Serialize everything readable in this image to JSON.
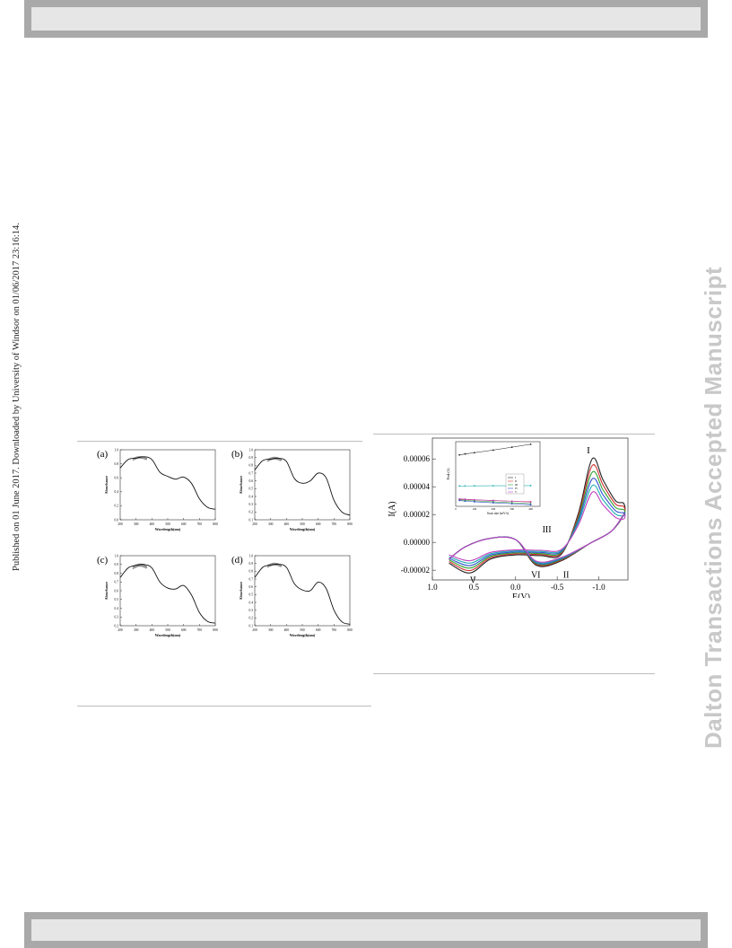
{
  "side_note": "Published on 01 June 2017. Downloaded by University of Windsor on 01/06/2017 23:16:14.",
  "watermark": "Dalton Transactions Accepted Manuscript",
  "colors": {
    "header_bar": "#a9a9a9",
    "watermark": "#c8c8c8"
  },
  "figure_left": {
    "panels": [
      {
        "label": "(a)",
        "xlabel": "Wavelength(nm)",
        "ylabel": "Absorbance"
      },
      {
        "label": "(b)",
        "xlabel": "Wavelength(nm)",
        "ylabel": "Absorbance"
      },
      {
        "label": "(c)",
        "xlabel": "Wavelength(nm)",
        "ylabel": "Absorbance"
      },
      {
        "label": "(d)",
        "xlabel": "Wavelength(nm)",
        "ylabel": "Absorbance"
      }
    ]
  },
  "figure_right": {
    "ylabel": "I(A)",
    "xlabel": "E(V)",
    "peak_labels": [
      "I",
      "II",
      "III",
      "V",
      "VI"
    ],
    "inset": {
      "xlabel": "Scan rate (mV/s)",
      "ylabel": "Peak (A)",
      "legend": [
        "I",
        "II",
        "III",
        "IV",
        "V"
      ]
    }
  },
  "chart_data": [
    {
      "type": "line",
      "title": "(a)",
      "xlabel": "Wavelength(nm)",
      "ylabel": "Absorbance",
      "x": [
        200,
        250,
        300,
        350,
        400,
        450,
        500,
        550,
        600,
        650,
        700,
        750,
        800
      ],
      "series": [
        {
          "values": [
            0.74,
            0.86,
            0.88,
            0.9,
            0.86,
            0.68,
            0.62,
            0.58,
            0.61,
            0.52,
            0.3,
            0.18,
            0.15
          ]
        }
      ],
      "xlim": [
        200,
        800
      ],
      "ylim": [
        0.0,
        1.0
      ],
      "xticks": [
        "200",
        "300",
        "400",
        "500",
        "600",
        "700",
        "800"
      ],
      "yticks": [
        "0.0",
        "0.2",
        "0.4",
        "0.6",
        "0.8",
        "1.0"
      ]
    },
    {
      "type": "line",
      "title": "(b)",
      "xlabel": "Wavelength(nm)",
      "ylabel": "Absorbance",
      "x": [
        200,
        250,
        300,
        350,
        400,
        450,
        500,
        550,
        600,
        650,
        700,
        750,
        800
      ],
      "series": [
        {
          "values": [
            0.74,
            0.86,
            0.88,
            0.89,
            0.85,
            0.63,
            0.57,
            0.6,
            0.7,
            0.64,
            0.35,
            0.2,
            0.16
          ]
        }
      ],
      "xlim": [
        200,
        800
      ],
      "ylim": [
        0.1,
        1.0
      ],
      "xticks": [
        "200",
        "300",
        "400",
        "500",
        "600",
        "700",
        "800"
      ],
      "yticks": [
        "0.1",
        "0.2",
        "0.3",
        "0.4",
        "0.5",
        "0.6",
        "0.7",
        "0.8",
        "0.9",
        "1.0"
      ]
    },
    {
      "type": "line",
      "title": "(c)",
      "xlabel": "Wavelength(nm)",
      "ylabel": "Absorbance",
      "x": [
        200,
        250,
        300,
        350,
        400,
        450,
        500,
        550,
        600,
        650,
        700,
        750,
        800
      ],
      "series": [
        {
          "values": [
            0.75,
            0.86,
            0.89,
            0.9,
            0.86,
            0.7,
            0.63,
            0.62,
            0.66,
            0.55,
            0.35,
            0.25,
            0.23
          ]
        }
      ],
      "xlim": [
        200,
        800
      ],
      "ylim": [
        0.2,
        1.0
      ],
      "xticks": [
        "200",
        "300",
        "400",
        "500",
        "600",
        "700",
        "800"
      ],
      "yticks": [
        "0.2",
        "0.3",
        "0.4",
        "0.5",
        "0.6",
        "0.7",
        "0.8",
        "0.9",
        "1.0"
      ]
    },
    {
      "type": "line",
      "title": "(d)",
      "xlabel": "Wavelength(nm)",
      "ylabel": "Absorbance",
      "x": [
        200,
        250,
        300,
        350,
        400,
        450,
        500,
        550,
        600,
        650,
        700,
        750,
        800
      ],
      "series": [
        {
          "values": [
            0.72,
            0.85,
            0.88,
            0.89,
            0.85,
            0.64,
            0.56,
            0.55,
            0.66,
            0.58,
            0.3,
            0.15,
            0.12
          ]
        }
      ],
      "xlim": [
        200,
        800
      ],
      "ylim": [
        0.1,
        1.0
      ],
      "xticks": [
        "200",
        "300",
        "400",
        "500",
        "600",
        "700",
        "800"
      ],
      "yticks": [
        "0.1",
        "0.2",
        "0.3",
        "0.4",
        "0.5",
        "0.6",
        "0.7",
        "0.8",
        "0.9",
        "1.0"
      ]
    },
    {
      "type": "line",
      "xlabel": "E(V)",
      "ylabel": "I(A)",
      "xlim": [
        1.0,
        -1.35
      ],
      "ylim": [
        -2.7e-05,
        7.5e-05
      ],
      "xticks": [
        "1.0",
        "0.5",
        "0.0",
        "-0.5",
        "-1.0"
      ],
      "yticks": [
        "-0.00002",
        "0.00000",
        "0.00002",
        "0.00004",
        "0.00006"
      ],
      "series": [
        {
          "color": "#222222",
          "scale": 1.0
        },
        {
          "color": "#d03030",
          "scale": 0.92
        },
        {
          "color": "#30a030",
          "scale": 0.84
        },
        {
          "color": "#3050d0",
          "scale": 0.76
        },
        {
          "color": "#20b0b0",
          "scale": 0.68
        },
        {
          "color": "#c040c0",
          "scale": 0.6
        }
      ],
      "peaks": {
        "I": [
          -0.92,
          6e-05
        ],
        "II": [
          -0.55,
          -1.5e-05
        ],
        "III": [
          -0.3,
          4e-06
        ],
        "V": [
          0.55,
          -2.2e-05
        ],
        "VI": [
          -0.25,
          -1.5e-05
        ]
      }
    },
    {
      "type": "line",
      "xlabel": "Scan rate (mV/s)",
      "ylabel": "Peak (A)",
      "x": [
        20,
        50,
        100,
        200,
        300,
        400
      ],
      "series": [
        {
          "name": "I",
          "color": "#222222",
          "values": [
            5.45e-05,
            5.6e-05,
            5.8e-05,
            6.2e-05,
            6.65e-05,
            7.1e-05
          ]
        },
        {
          "name": "II",
          "color": "#d03030",
          "values": [
            -1.4e-05,
            -1.45e-05,
            -1.5e-05,
            -1.6e-05,
            -1.7e-05,
            -1.8e-05
          ]
        },
        {
          "name": "III",
          "color": "#30a030",
          "values": [
            -1.5e-05,
            -1.55e-05,
            -1.65e-05,
            -1.8e-05,
            -1.95e-05,
            -2.1e-05
          ]
        },
        {
          "name": "IV",
          "color": "#3050d0",
          "values": [
            -1.6e-05,
            -1.7e-05,
            -1.8e-05,
            -1.95e-05,
            -2.1e-05,
            -2.25e-05
          ]
        },
        {
          "name": "V",
          "color": "#c040c0",
          "values": [
            -1.35e-05,
            -1.4e-05,
            -1.48e-05,
            -1.6e-05,
            -1.72e-05,
            -1.85e-05
          ]
        },
        {
          "name": "",
          "color": "#20b0b0",
          "values": [
            6.5e-06,
            6.6e-06,
            6.7e-06,
            6.8e-06,
            6.9e-06,
            7e-06
          ]
        }
      ],
      "xlim": [
        0,
        450
      ],
      "ylim": [
        -2.5e-05,
        7.5e-05
      ],
      "xticks": [
        "0",
        "100",
        "200",
        "300",
        "400"
      ]
    }
  ]
}
